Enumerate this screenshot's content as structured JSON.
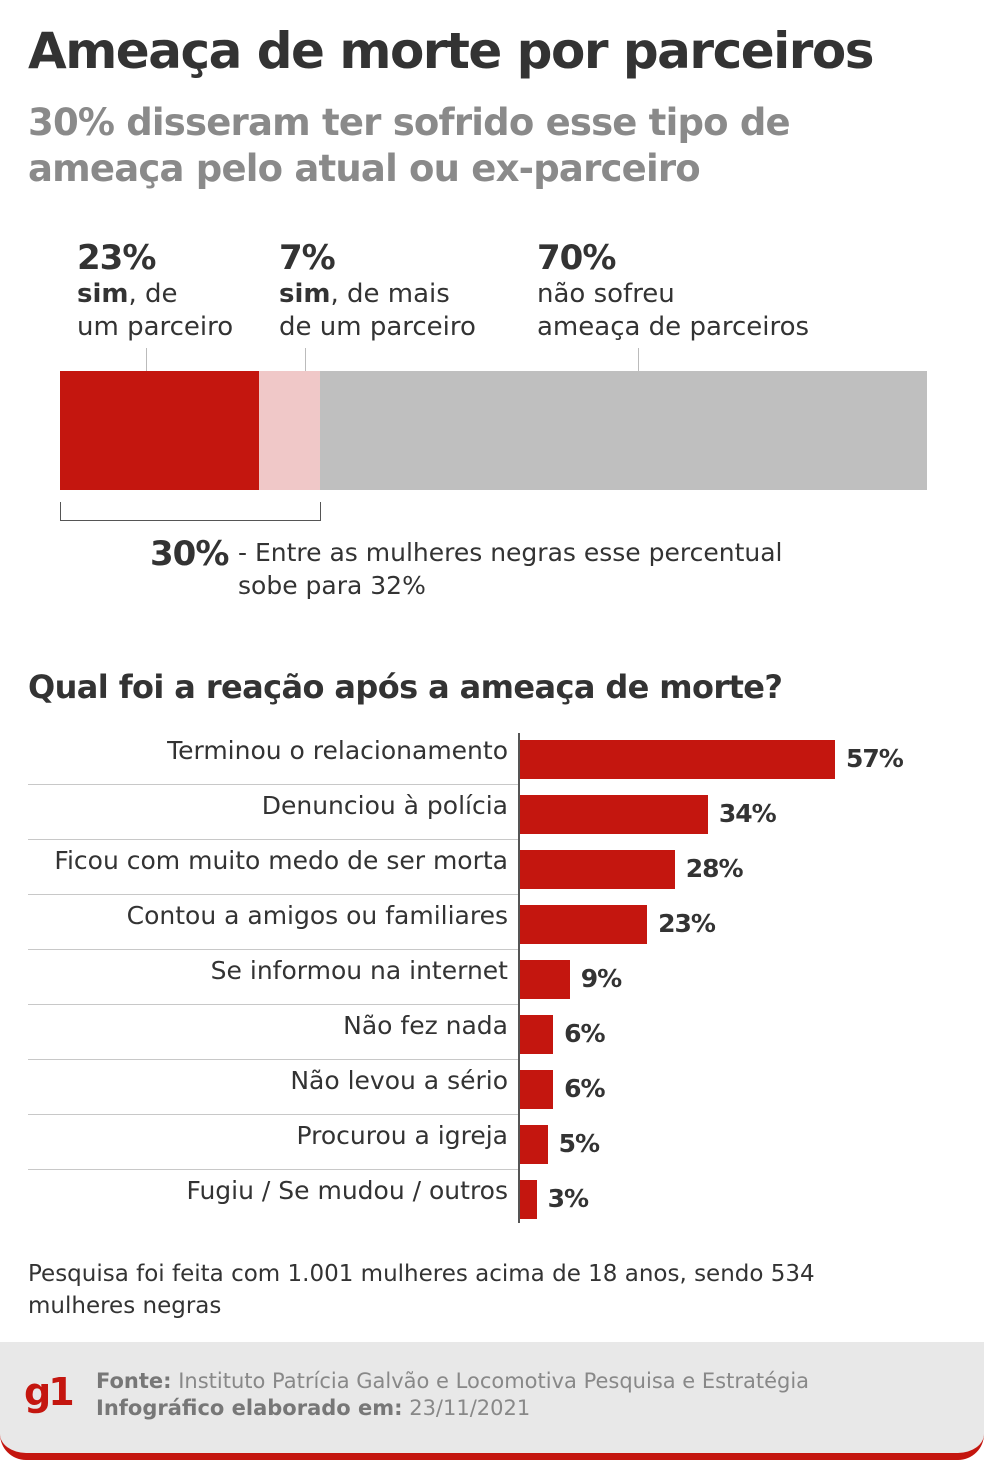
{
  "title": "Ameaça de morte por parceiros",
  "subtitle": "30% disseram ter sofrido esse tipo de ameaça pelo atual ou ex-parceiro",
  "stacked": {
    "segments": [
      {
        "pct": "23%",
        "bold": "sim",
        "rest": ", de",
        "line2": "um parceiro",
        "value": 23,
        "color": "#c4160f"
      },
      {
        "pct": "7%",
        "bold": "sim",
        "rest": ", de mais",
        "line2": "de um parceiro",
        "value": 7,
        "color": "#f0c8c8"
      },
      {
        "pct": "70%",
        "bold": "",
        "rest": "não sofreu",
        "line2": "ameaça de parceiros",
        "value": 70,
        "color": "#bfbfbf"
      }
    ],
    "total_pct": "30%",
    "total_note": "- Entre as mulheres negras esse percentual sobe para 32%"
  },
  "question": "Qual foi a reação após a ameaça de morte?",
  "chart_data": {
    "type": "bar",
    "orientation": "horizontal",
    "title": "Qual foi a reação após a ameaça de morte?",
    "categories": [
      "Terminou o relacionamento",
      "Denunciou à polícia",
      "Ficou com muito medo de ser morta",
      "Contou a amigos ou familiares",
      "Se informou na internet",
      "Não fez nada",
      "Não levou a sério",
      "Procurou a igreja",
      "Fugiu / Se mudou / outros"
    ],
    "values": [
      57,
      34,
      28,
      23,
      9,
      6,
      6,
      5,
      3
    ],
    "labels": [
      "57%",
      "34%",
      "28%",
      "23%",
      "9%",
      "6%",
      "6%",
      "5%",
      "3%"
    ],
    "bar_color": "#c4160f",
    "xlim": [
      0,
      57
    ]
  },
  "footnote": "Pesquisa foi feita com 1.001 mulheres acima de 18 anos, sendo 534 mulheres negras",
  "footer": {
    "logo": "g1",
    "source_label": "Fonte:",
    "source_text": " Instituto Patrícia Galvão e Locomotiva Pesquisa e Estratégia",
    "date_label": "Infográfico elaborado em:",
    "date_text": " 23/11/2021"
  }
}
